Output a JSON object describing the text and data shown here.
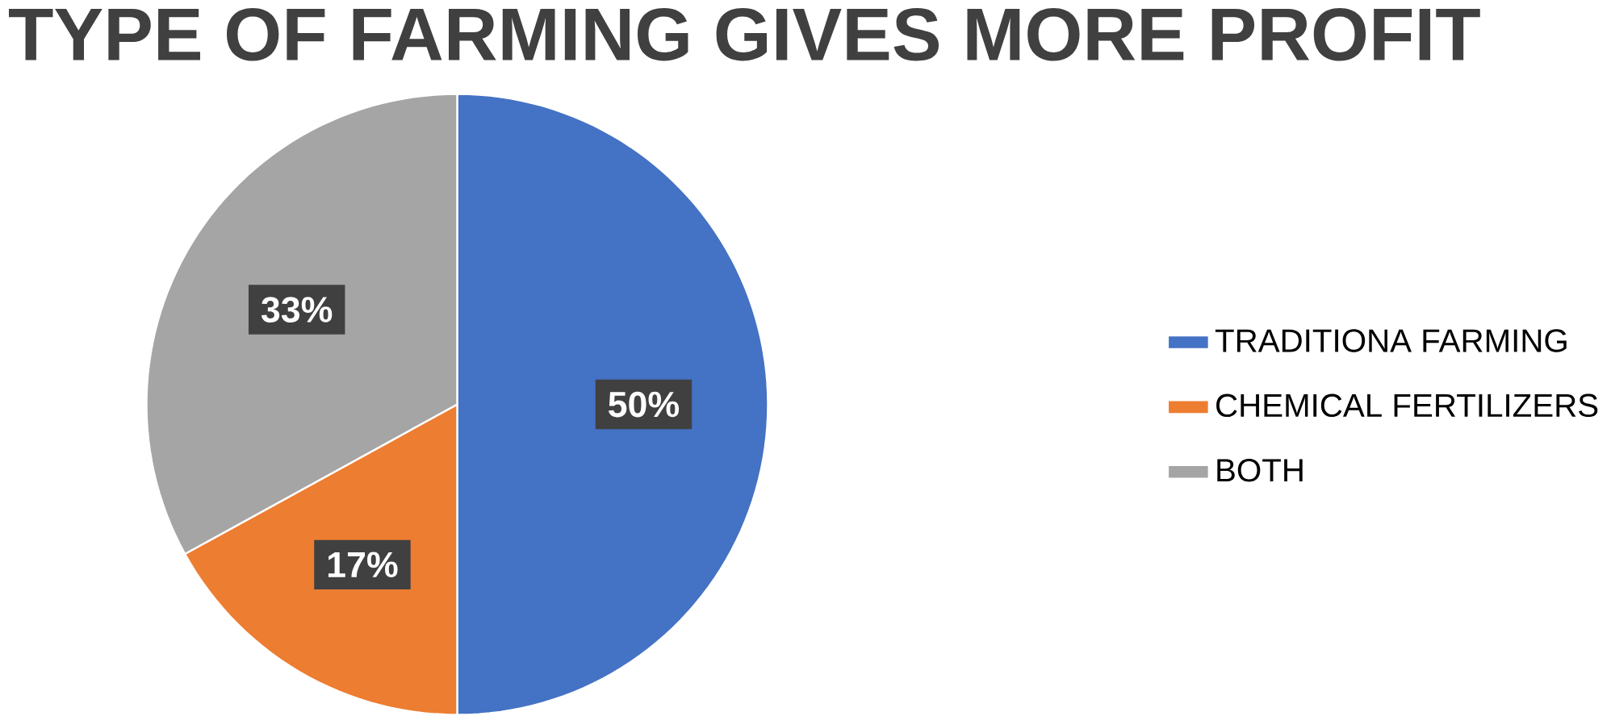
{
  "chart_data": {
    "type": "pie",
    "title": "TYPE OF FARMING GIVES MORE PROFIT",
    "categories": [
      "TRADITIONA FARMING",
      "CHEMICAL FERTILIZERS",
      "BOTH"
    ],
    "values": [
      50,
      17,
      33
    ],
    "colors": [
      "#4472c4",
      "#ed7d31",
      "#a5a5a5"
    ],
    "value_labels": [
      "50%",
      "17%",
      "33%"
    ],
    "legend": "right"
  }
}
